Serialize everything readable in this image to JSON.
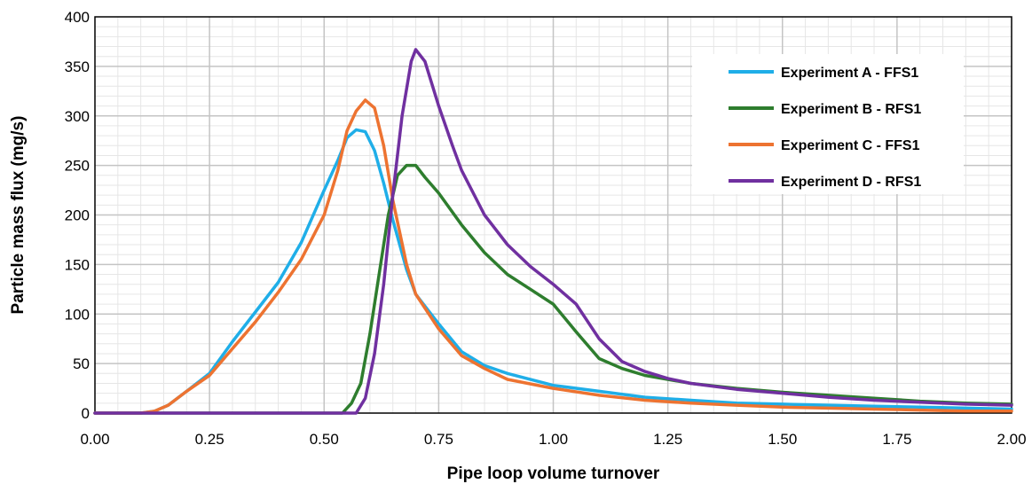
{
  "chart_data": {
    "type": "line",
    "title": "",
    "xlabel": "Pipe loop volume turnover",
    "ylabel": "Particle mass flux (mg/s)",
    "xlim": [
      0,
      2
    ],
    "ylim": [
      0,
      400
    ],
    "x_ticks": [
      "0.00",
      "0.25",
      "0.50",
      "0.75",
      "1.00",
      "1.25",
      "1.50",
      "1.75",
      "2.00"
    ],
    "y_ticks": [
      "0",
      "50",
      "100",
      "150",
      "200",
      "250",
      "300",
      "350",
      "400"
    ],
    "major_grid": true,
    "minor_grid": true,
    "legend_position": "top-right",
    "series": [
      {
        "name": "Experiment A - FFS1",
        "color": "#1FAEE8",
        "points": [
          [
            0,
            0
          ],
          [
            0.1,
            0
          ],
          [
            0.13,
            2
          ],
          [
            0.16,
            8
          ],
          [
            0.2,
            22
          ],
          [
            0.25,
            40
          ],
          [
            0.3,
            72
          ],
          [
            0.35,
            102
          ],
          [
            0.4,
            132
          ],
          [
            0.45,
            172
          ],
          [
            0.5,
            225
          ],
          [
            0.53,
            255
          ],
          [
            0.55,
            278
          ],
          [
            0.57,
            286
          ],
          [
            0.59,
            284
          ],
          [
            0.61,
            265
          ],
          [
            0.63,
            232
          ],
          [
            0.65,
            195
          ],
          [
            0.68,
            145
          ],
          [
            0.7,
            120
          ],
          [
            0.75,
            90
          ],
          [
            0.8,
            62
          ],
          [
            0.85,
            48
          ],
          [
            0.9,
            40
          ],
          [
            1.0,
            28
          ],
          [
            1.1,
            22
          ],
          [
            1.2,
            16
          ],
          [
            1.3,
            13
          ],
          [
            1.4,
            10
          ],
          [
            1.5,
            9
          ],
          [
            1.6,
            8
          ],
          [
            1.7,
            7
          ],
          [
            1.8,
            6
          ],
          [
            1.9,
            5
          ],
          [
            2.0,
            4
          ]
        ]
      },
      {
        "name": "Experiment B - RFS1",
        "color": "#2E7D2E",
        "points": [
          [
            0,
            0
          ],
          [
            0.5,
            0
          ],
          [
            0.54,
            0
          ],
          [
            0.56,
            10
          ],
          [
            0.58,
            30
          ],
          [
            0.6,
            80
          ],
          [
            0.62,
            140
          ],
          [
            0.64,
            200
          ],
          [
            0.66,
            240
          ],
          [
            0.68,
            250
          ],
          [
            0.7,
            250
          ],
          [
            0.72,
            238
          ],
          [
            0.75,
            222
          ],
          [
            0.8,
            190
          ],
          [
            0.85,
            162
          ],
          [
            0.9,
            140
          ],
          [
            0.95,
            125
          ],
          [
            1.0,
            110
          ],
          [
            1.05,
            82
          ],
          [
            1.1,
            55
          ],
          [
            1.15,
            45
          ],
          [
            1.2,
            38
          ],
          [
            1.3,
            30
          ],
          [
            1.4,
            25
          ],
          [
            1.5,
            21
          ],
          [
            1.6,
            18
          ],
          [
            1.7,
            15
          ],
          [
            1.8,
            12
          ],
          [
            1.9,
            10
          ],
          [
            2.0,
            9
          ]
        ]
      },
      {
        "name": "Experiment C - FFS1",
        "color": "#ED7331",
        "points": [
          [
            0,
            0
          ],
          [
            0.1,
            0
          ],
          [
            0.13,
            2
          ],
          [
            0.16,
            8
          ],
          [
            0.2,
            22
          ],
          [
            0.25,
            38
          ],
          [
            0.3,
            65
          ],
          [
            0.35,
            92
          ],
          [
            0.4,
            122
          ],
          [
            0.45,
            155
          ],
          [
            0.5,
            200
          ],
          [
            0.53,
            245
          ],
          [
            0.55,
            285
          ],
          [
            0.57,
            305
          ],
          [
            0.59,
            316
          ],
          [
            0.61,
            308
          ],
          [
            0.63,
            270
          ],
          [
            0.65,
            215
          ],
          [
            0.68,
            150
          ],
          [
            0.7,
            120
          ],
          [
            0.75,
            85
          ],
          [
            0.8,
            58
          ],
          [
            0.85,
            45
          ],
          [
            0.9,
            34
          ],
          [
            1.0,
            25
          ],
          [
            1.1,
            18
          ],
          [
            1.2,
            13
          ],
          [
            1.3,
            10
          ],
          [
            1.4,
            8
          ],
          [
            1.5,
            6
          ],
          [
            1.6,
            5
          ],
          [
            1.7,
            4
          ],
          [
            1.8,
            3
          ],
          [
            1.9,
            2
          ],
          [
            2.0,
            2
          ]
        ]
      },
      {
        "name": "Experiment D - RFS1",
        "color": "#7030A0",
        "points": [
          [
            0,
            0
          ],
          [
            0.55,
            0
          ],
          [
            0.57,
            0
          ],
          [
            0.59,
            15
          ],
          [
            0.61,
            60
          ],
          [
            0.63,
            130
          ],
          [
            0.65,
            220
          ],
          [
            0.67,
            300
          ],
          [
            0.69,
            355
          ],
          [
            0.7,
            367
          ],
          [
            0.72,
            355
          ],
          [
            0.75,
            310
          ],
          [
            0.78,
            270
          ],
          [
            0.8,
            245
          ],
          [
            0.85,
            200
          ],
          [
            0.9,
            170
          ],
          [
            0.95,
            148
          ],
          [
            1.0,
            130
          ],
          [
            1.05,
            110
          ],
          [
            1.1,
            75
          ],
          [
            1.15,
            52
          ],
          [
            1.2,
            42
          ],
          [
            1.25,
            35
          ],
          [
            1.3,
            30
          ],
          [
            1.4,
            24
          ],
          [
            1.5,
            20
          ],
          [
            1.6,
            16
          ],
          [
            1.7,
            13
          ],
          [
            1.8,
            11
          ],
          [
            1.9,
            9
          ],
          [
            2.0,
            8
          ]
        ]
      }
    ]
  }
}
